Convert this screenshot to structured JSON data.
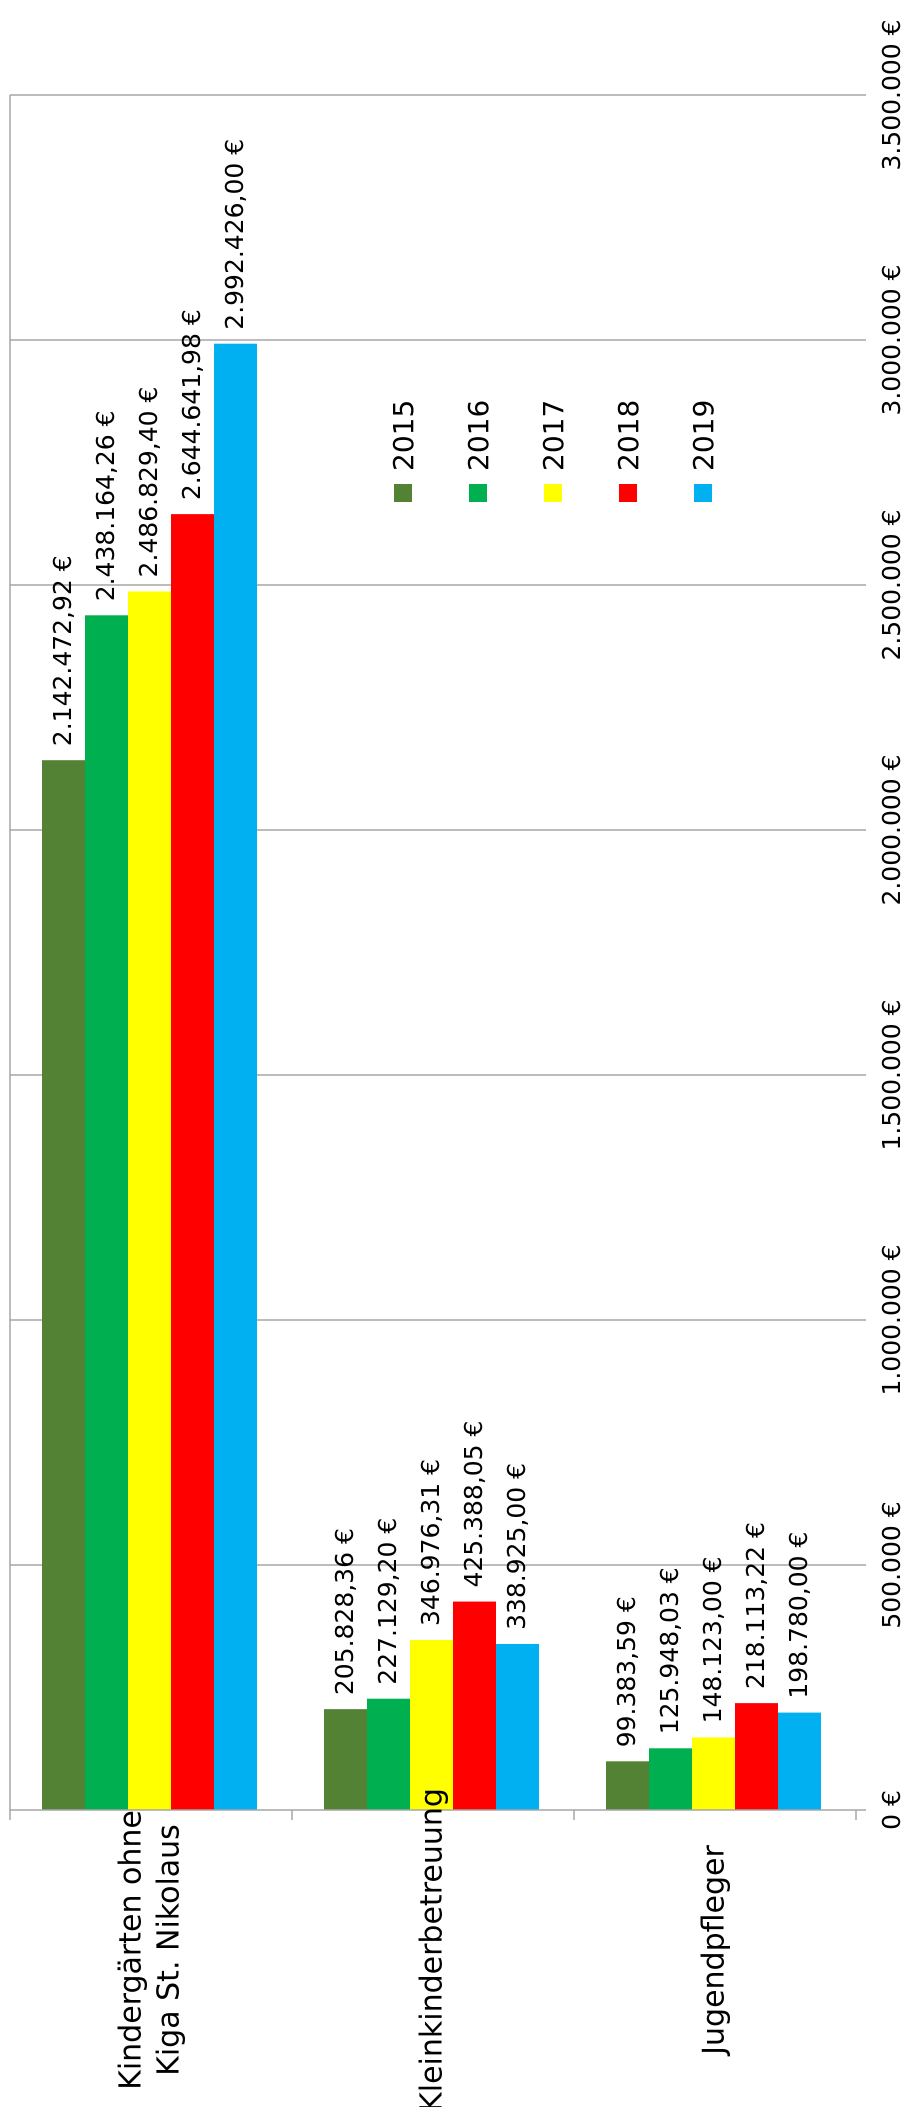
{
  "chart_data": {
    "type": "bar",
    "orientation": "horizontal",
    "title": "",
    "xlabel": "",
    "ylabel": "",
    "categories": [
      [
        "Kindergärten ohne",
        "Kiga St. Nikolaus"
      ],
      [
        "Kleinkinderbetreuung"
      ],
      [
        "Jugendpfleger"
      ]
    ],
    "series": [
      {
        "name": "2015",
        "color": "#548235",
        "values": [
          2142472.92,
          205828.36,
          99383.59
        ],
        "labels": [
          "2.142.472,92 €",
          "205.828,36 €",
          "99.383,59 €"
        ]
      },
      {
        "name": "2016",
        "color": "#00B050",
        "values": [
          2438164.26,
          227129.2,
          125948.03
        ],
        "labels": [
          "2.438.164,26 €",
          "227.129,20 €",
          "125.948,03 €"
        ]
      },
      {
        "name": "2017",
        "color": "#FFFF00",
        "values": [
          2486829.4,
          346976.31,
          148123.0
        ],
        "labels": [
          "2.486.829,40 €",
          "346.976,31 €",
          "148.123,00 €"
        ]
      },
      {
        "name": "2018",
        "color": "#FF0000",
        "values": [
          2644641.98,
          425388.05,
          218113.22
        ],
        "labels": [
          "2.644.641,98 €",
          "425.388,05 €",
          "218.113,22 €"
        ]
      },
      {
        "name": "2019",
        "color": "#00B0F0",
        "values": [
          2992426.0,
          338925.0,
          198780.0
        ],
        "labels": [
          "2.992.426,00 €",
          "338.925,00 €",
          "198.780,00 €"
        ]
      }
    ],
    "axis": {
      "range": [
        0,
        3500000
      ],
      "ticks": [
        0,
        500000,
        1000000,
        1500000,
        2000000,
        2500000,
        3000000,
        3500000
      ],
      "tick_labels": [
        "0 €",
        "500.000 €",
        "1.000.000 €",
        "1.500.000 €",
        "2.000.000 €",
        "2.500.000 €",
        "3.000.000 €",
        "3.500.000 €"
      ]
    },
    "grid": true,
    "legend_position": "right"
  }
}
